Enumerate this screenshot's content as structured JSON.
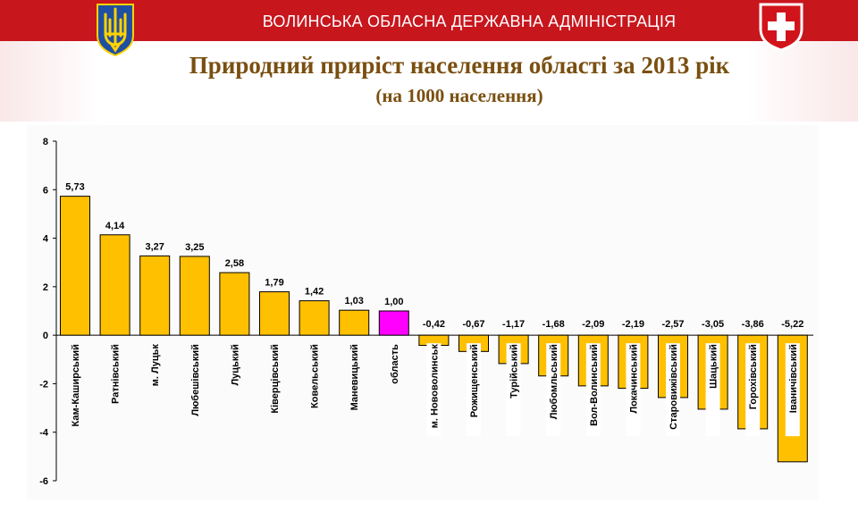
{
  "header": {
    "org_title": "ВОЛИНСЬКА ОБЛАСНА ДЕРЖАВНА АДМІНІСТРАЦІЯ"
  },
  "slide": {
    "title": "Природний приріст населення області за 2013 рік",
    "subtitle": "(на 1000 населення)"
  },
  "icons": {
    "left_emblem": "ukraine-trident-emblem",
    "right_emblem": "volyn-coat-of-arms"
  },
  "colors": {
    "header_band": "#c8161d",
    "title_text": "#7a4f10",
    "bar_default": "#ffc000",
    "bar_highlight": "#ff00ff",
    "label_box": "#ffffff"
  },
  "chart_data": {
    "type": "bar",
    "title": "",
    "xlabel": "",
    "ylabel": "",
    "ylim": [
      -6,
      8
    ],
    "yticks": [
      -6,
      -4,
      -2,
      0,
      2,
      4,
      6,
      8
    ],
    "ytick_labels": [
      "-6",
      "-4",
      "-2",
      "0",
      "2",
      "4",
      "6",
      "8"
    ],
    "grid": false,
    "legend": "none",
    "categories": [
      "Кам-Каширський",
      "Ратнівський",
      "м. Луцьк",
      "Любешівський",
      "Луцький",
      "Ківерцівський",
      "Ковельський",
      "Маневицький",
      "область",
      "м. Нововолинськ",
      "Рожищенський",
      "Турійський",
      "Любомльський",
      "Вол-Волинський",
      "Локачинський",
      "Старовижівський",
      "Шацький",
      "Горохівський",
      "Іваничівський"
    ],
    "values": [
      5.73,
      4.14,
      3.27,
      3.25,
      2.58,
      1.79,
      1.42,
      1.03,
      1.0,
      -0.42,
      -0.67,
      -1.17,
      -1.68,
      -2.09,
      -2.19,
      -2.57,
      -3.05,
      -3.86,
      -5.22
    ],
    "value_labels": [
      "5,73",
      "4,14",
      "3,27",
      "3,25",
      "2,58",
      "1,79",
      "1,42",
      "1,03",
      "1,00",
      "-0,42",
      "-0,67",
      "-1,17",
      "-1,68",
      "-2,09",
      "-2,19",
      "-2,57",
      "-3,05",
      "-3,86",
      "-5,22"
    ],
    "highlight_index": 8
  }
}
